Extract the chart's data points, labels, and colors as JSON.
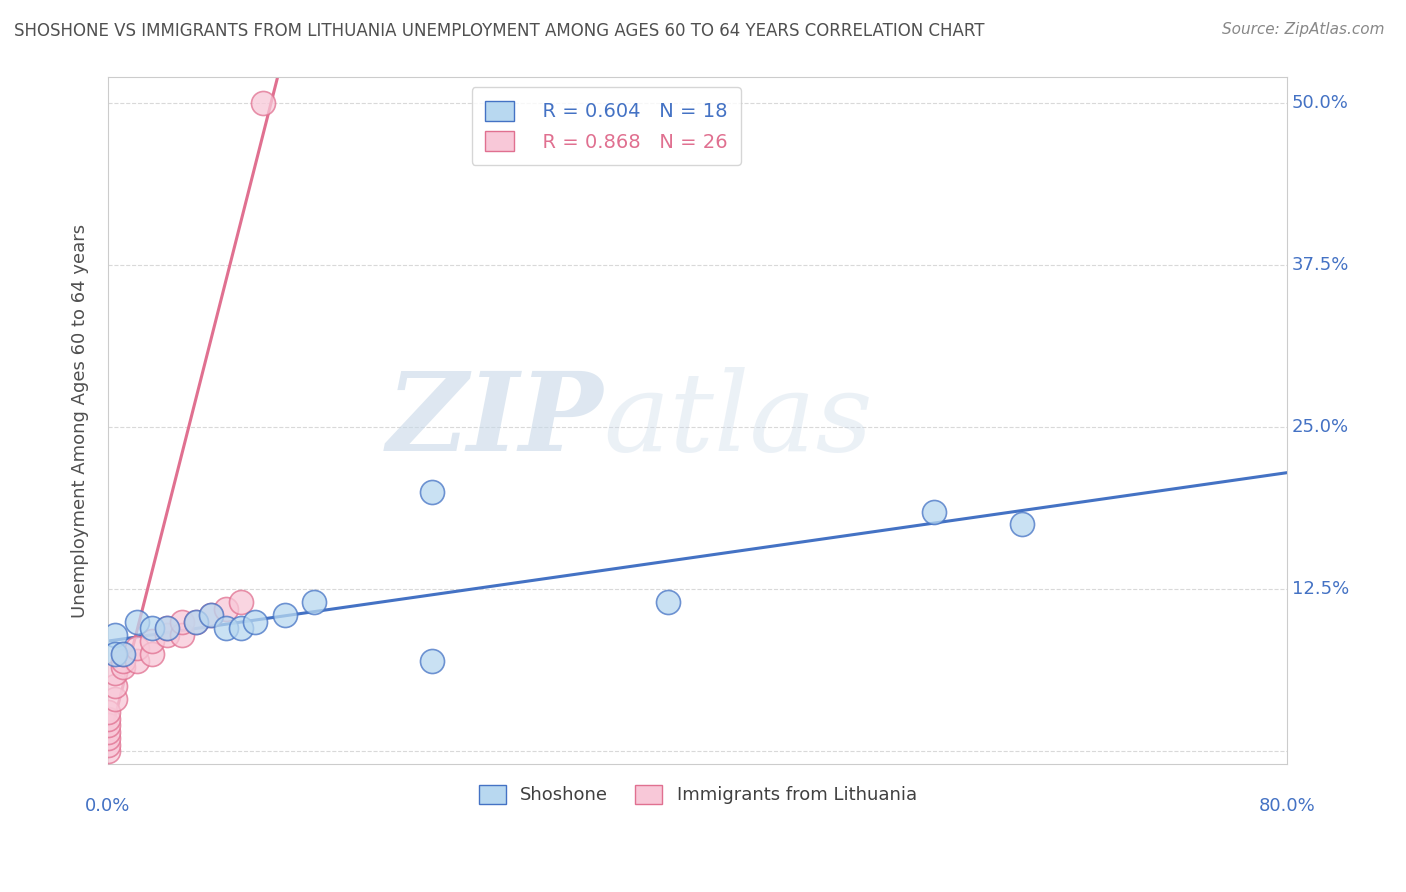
{
  "title": "SHOSHONE VS IMMIGRANTS FROM LITHUANIA UNEMPLOYMENT AMONG AGES 60 TO 64 YEARS CORRELATION CHART",
  "source": "Source: ZipAtlas.com",
  "ylabel": "Unemployment Among Ages 60 to 64 years",
  "xlim": [
    0.0,
    0.8
  ],
  "ylim": [
    -0.01,
    0.52
  ],
  "xticks": [
    0.0,
    0.1,
    0.2,
    0.3,
    0.4,
    0.5,
    0.6,
    0.7,
    0.8
  ],
  "yticks": [
    0.0,
    0.125,
    0.25,
    0.375,
    0.5
  ],
  "ytick_labels": [
    "0.0%",
    "12.5%",
    "25.0%",
    "37.5%",
    "50.0%"
  ],
  "watermark_zip": "ZIP",
  "watermark_atlas": "atlas",
  "shoshone_color": "#b8d8f0",
  "shoshone_edge": "#4472c4",
  "lithuania_color": "#f8c8d8",
  "lithuania_edge": "#e07090",
  "shoshone_R": 0.604,
  "shoshone_N": 18,
  "lithuania_R": 0.868,
  "lithuania_N": 26,
  "shoshone_points_x": [
    0.005,
    0.005,
    0.01,
    0.02,
    0.03,
    0.04,
    0.06,
    0.07,
    0.08,
    0.09,
    0.1,
    0.12,
    0.14,
    0.22,
    0.22,
    0.38,
    0.56,
    0.62
  ],
  "shoshone_points_y": [
    0.09,
    0.075,
    0.075,
    0.1,
    0.095,
    0.095,
    0.1,
    0.105,
    0.095,
    0.095,
    0.1,
    0.105,
    0.115,
    0.2,
    0.07,
    0.115,
    0.185,
    0.175
  ],
  "lithuania_points_x": [
    0.0,
    0.0,
    0.0,
    0.0,
    0.0,
    0.0,
    0.0,
    0.005,
    0.005,
    0.005,
    0.01,
    0.01,
    0.01,
    0.02,
    0.02,
    0.03,
    0.03,
    0.04,
    0.04,
    0.05,
    0.05,
    0.06,
    0.07,
    0.08,
    0.09,
    0.105
  ],
  "lithuania_points_y": [
    0.0,
    0.005,
    0.01,
    0.015,
    0.02,
    0.025,
    0.03,
    0.04,
    0.05,
    0.06,
    0.065,
    0.07,
    0.075,
    0.07,
    0.08,
    0.075,
    0.085,
    0.09,
    0.095,
    0.09,
    0.1,
    0.1,
    0.105,
    0.11,
    0.115,
    0.5
  ],
  "shoshone_trend_x": [
    0.0,
    0.8
  ],
  "shoshone_trend_y": [
    0.085,
    0.215
  ],
  "lithuania_trend_x": [
    0.0,
    0.115
  ],
  "lithuania_trend_y": [
    0.005,
    0.52
  ],
  "background_color": "#ffffff",
  "grid_color": "#d0d0d0",
  "title_color": "#505050",
  "axis_label_color": "#505050",
  "tick_color": "#4472c4",
  "right_tick_color": "#4472c4"
}
